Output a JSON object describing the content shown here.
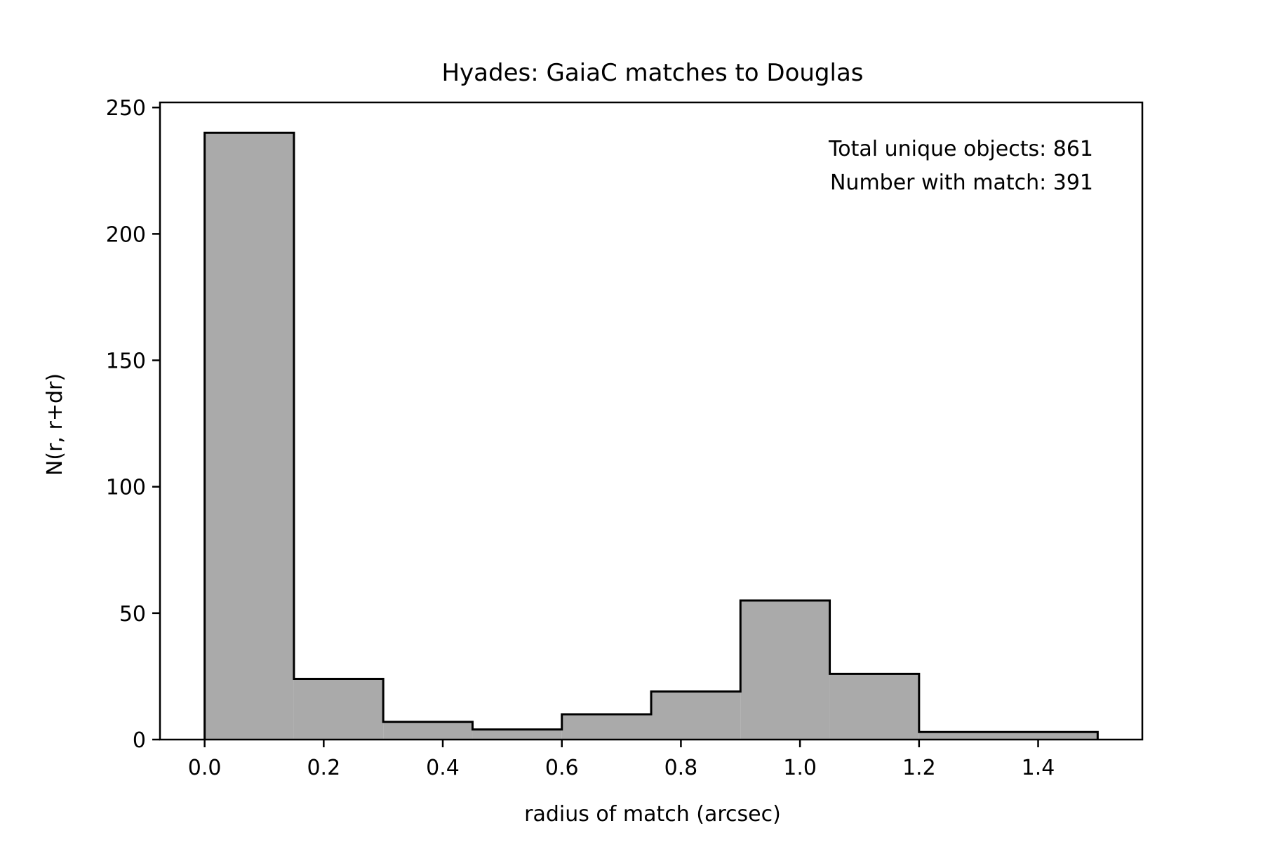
{
  "chart_data": {
    "type": "bar",
    "title": "Hyades: GaiaC matches to Douglas",
    "xlabel": "radius of match (arcsec)",
    "ylabel": "N(r, r+dr)",
    "bin_edges": [
      0.0,
      0.15,
      0.3,
      0.45,
      0.6,
      0.75,
      0.9,
      1.05,
      1.2,
      1.5
    ],
    "values": [
      240,
      24,
      7,
      4,
      10,
      19,
      55,
      26,
      3
    ],
    "xlim": [
      -0.075,
      1.575
    ],
    "ylim": [
      0,
      252
    ],
    "xticks": [
      {
        "value": 0.0,
        "label": "0.0"
      },
      {
        "value": 0.2,
        "label": "0.2"
      },
      {
        "value": 0.4,
        "label": "0.4"
      },
      {
        "value": 0.6,
        "label": "0.6"
      },
      {
        "value": 0.8,
        "label": "0.8"
      },
      {
        "value": 1.0,
        "label": "1.0"
      },
      {
        "value": 1.2,
        "label": "1.2"
      },
      {
        "value": 1.4,
        "label": "1.4"
      }
    ],
    "yticks": [
      {
        "value": 0,
        "label": "0"
      },
      {
        "value": 50,
        "label": "50"
      },
      {
        "value": 100,
        "label": "100"
      },
      {
        "value": 150,
        "label": "150"
      },
      {
        "value": 200,
        "label": "200"
      },
      {
        "value": 250,
        "label": "250"
      }
    ],
    "annotations": [
      "Total unique objects: 861",
      "Number with match: 391"
    ],
    "bar_color": "#aaaaaa",
    "edge_color": "#000000",
    "grid": false,
    "legend": "none"
  }
}
